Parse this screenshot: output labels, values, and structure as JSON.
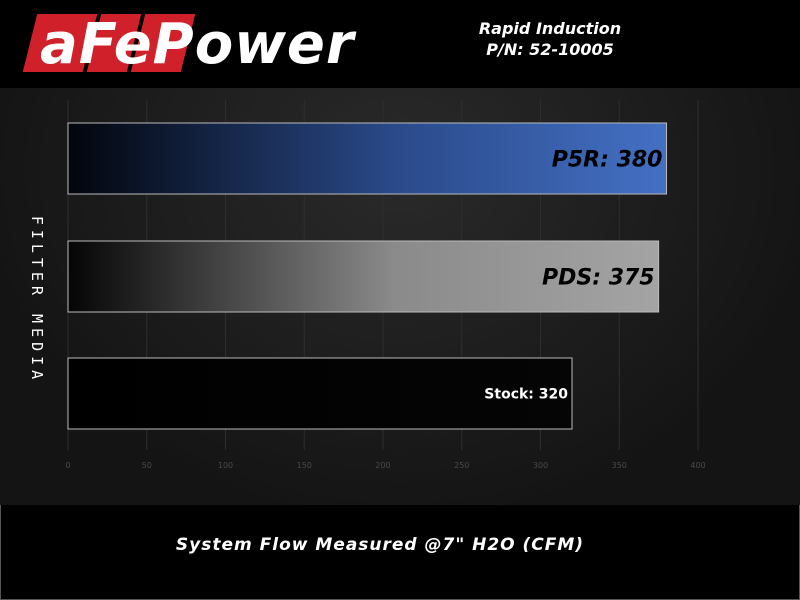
{
  "header": {
    "logo": "aFePower",
    "title_line1": "Rapid Induction",
    "title_line2": "P/N: 52-10005"
  },
  "chart_data": {
    "type": "bar",
    "orientation": "horizontal",
    "categories": [
      "PSR",
      "PDS",
      "Stock"
    ],
    "values": [
      380,
      375,
      320
    ],
    "data_labels": [
      "P5R: 380",
      "PDS: 375",
      "Stock: 320"
    ],
    "bar_colors": [
      "#3f6bbf",
      "#a0a0a0",
      "#000000"
    ],
    "xlabel": "System Flow Measured @7\" H2O (CFM)",
    "ylabel": "FILTER MEDIA",
    "xlim": [
      0,
      400
    ],
    "xticks": [
      0,
      50,
      100,
      150,
      200,
      250,
      300,
      350,
      400
    ],
    "grid": true
  }
}
